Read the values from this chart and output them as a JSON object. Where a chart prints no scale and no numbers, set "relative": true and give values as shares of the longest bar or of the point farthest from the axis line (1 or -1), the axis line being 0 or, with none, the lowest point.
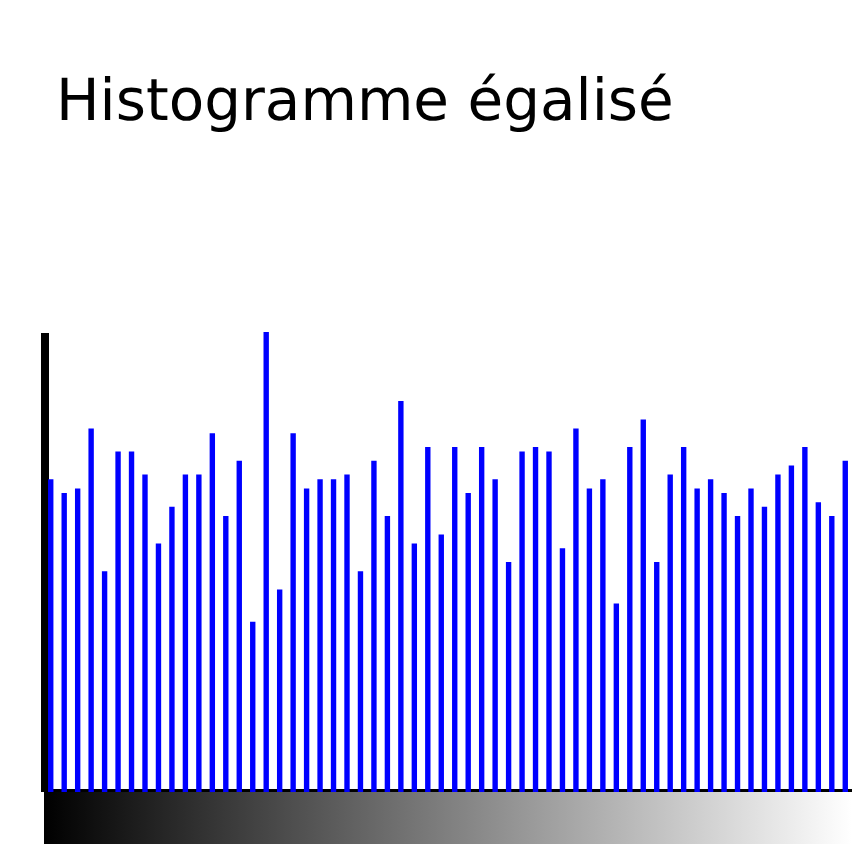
{
  "chart_data": {
    "type": "bar",
    "title": "Histogramme égalisé",
    "relative": true,
    "color": "#0000ff",
    "categories": [
      null,
      null,
      null,
      null,
      null,
      null,
      null,
      null,
      null,
      null,
      null,
      null,
      null,
      null,
      null,
      null,
      null,
      null,
      null,
      null,
      null,
      null,
      null,
      null,
      null,
      null,
      null,
      null,
      null,
      null,
      null,
      null,
      null,
      null,
      null,
      null,
      null,
      null,
      null,
      null,
      null,
      null,
      null,
      null,
      null,
      null,
      null,
      null,
      null,
      null,
      null,
      null,
      null,
      null,
      null,
      null,
      null,
      null,
      null,
      null
    ],
    "values": [
      0.68,
      0.65,
      0.66,
      0.79,
      0.48,
      0.74,
      0.74,
      0.69,
      0.54,
      0.62,
      0.69,
      0.69,
      0.78,
      0.6,
      0.72,
      0.37,
      1,
      0.44,
      0.78,
      0.66,
      0.68,
      0.68,
      0.69,
      0.48,
      0.72,
      0.6,
      0.85,
      0.54,
      0.75,
      0.56,
      0.75,
      0.65,
      0.75,
      0.68,
      0.5,
      0.74,
      0.75,
      0.74,
      0.53,
      0.79,
      0.66,
      0.68,
      0.41,
      0.75,
      0.81,
      0.5,
      0.69,
      0.75,
      0.66,
      0.68,
      0.65,
      0.6,
      0.66,
      0.62,
      0.69,
      0.71,
      0.75,
      0.63,
      0.6,
      0.72
    ]
  }
}
